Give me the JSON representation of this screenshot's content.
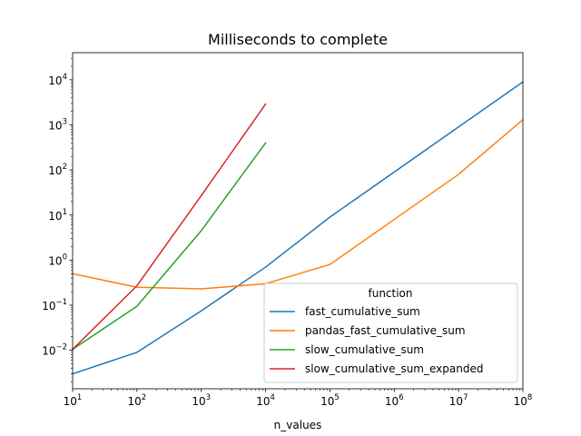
{
  "chart_data": {
    "type": "line",
    "title": "Milliseconds to complete",
    "xlabel": "n_values",
    "ylabel": "",
    "xscale": "log",
    "yscale": "log",
    "xlim": [
      10,
      100000000
    ],
    "ylim": [
      0.0014,
      40000
    ],
    "grid": false,
    "legend": {
      "title": "function",
      "placement": "lower right"
    },
    "x_ticks": [
      {
        "value": 10,
        "base": "10",
        "exp": "1"
      },
      {
        "value": 100,
        "base": "10",
        "exp": "2"
      },
      {
        "value": 1000,
        "base": "10",
        "exp": "3"
      },
      {
        "value": 10000,
        "base": "10",
        "exp": "4"
      },
      {
        "value": 100000,
        "base": "10",
        "exp": "5"
      },
      {
        "value": 1000000,
        "base": "10",
        "exp": "6"
      },
      {
        "value": 10000000,
        "base": "10",
        "exp": "7"
      },
      {
        "value": 100000000,
        "base": "10",
        "exp": "8"
      }
    ],
    "y_ticks": [
      {
        "value": 0.01,
        "base": "10",
        "exp": "−2"
      },
      {
        "value": 0.1,
        "base": "10",
        "exp": "−1"
      },
      {
        "value": 1,
        "base": "10",
        "exp": "0"
      },
      {
        "value": 10,
        "base": "10",
        "exp": "1"
      },
      {
        "value": 100,
        "base": "10",
        "exp": "2"
      },
      {
        "value": 1000,
        "base": "10",
        "exp": "3"
      },
      {
        "value": 10000,
        "base": "10",
        "exp": "4"
      }
    ],
    "series": [
      {
        "name": "fast_cumulative_sum",
        "color": "#1f77b4",
        "x": [
          10,
          100,
          1000,
          10000,
          100000,
          1000000,
          10000000,
          100000000
        ],
        "y": [
          0.003,
          0.009,
          0.075,
          0.7,
          9,
          90,
          900,
          9000
        ]
      },
      {
        "name": "pandas_fast_cumulative_sum",
        "color": "#ff7f0e",
        "x": [
          10,
          100,
          1000,
          10000,
          100000,
          1000000,
          10000000,
          100000000
        ],
        "y": [
          0.5,
          0.25,
          0.23,
          0.3,
          0.8,
          8,
          80,
          1300
        ]
      },
      {
        "name": "slow_cumulative_sum",
        "color": "#2ca02c",
        "x": [
          10,
          100,
          1000,
          10000
        ],
        "y": [
          0.0105,
          0.095,
          4.5,
          400
        ]
      },
      {
        "name": "slow_cumulative_sum_expanded",
        "color": "#d62728",
        "x": [
          10,
          100,
          1000,
          10000
        ],
        "y": [
          0.0105,
          0.27,
          27,
          2900
        ]
      }
    ]
  }
}
